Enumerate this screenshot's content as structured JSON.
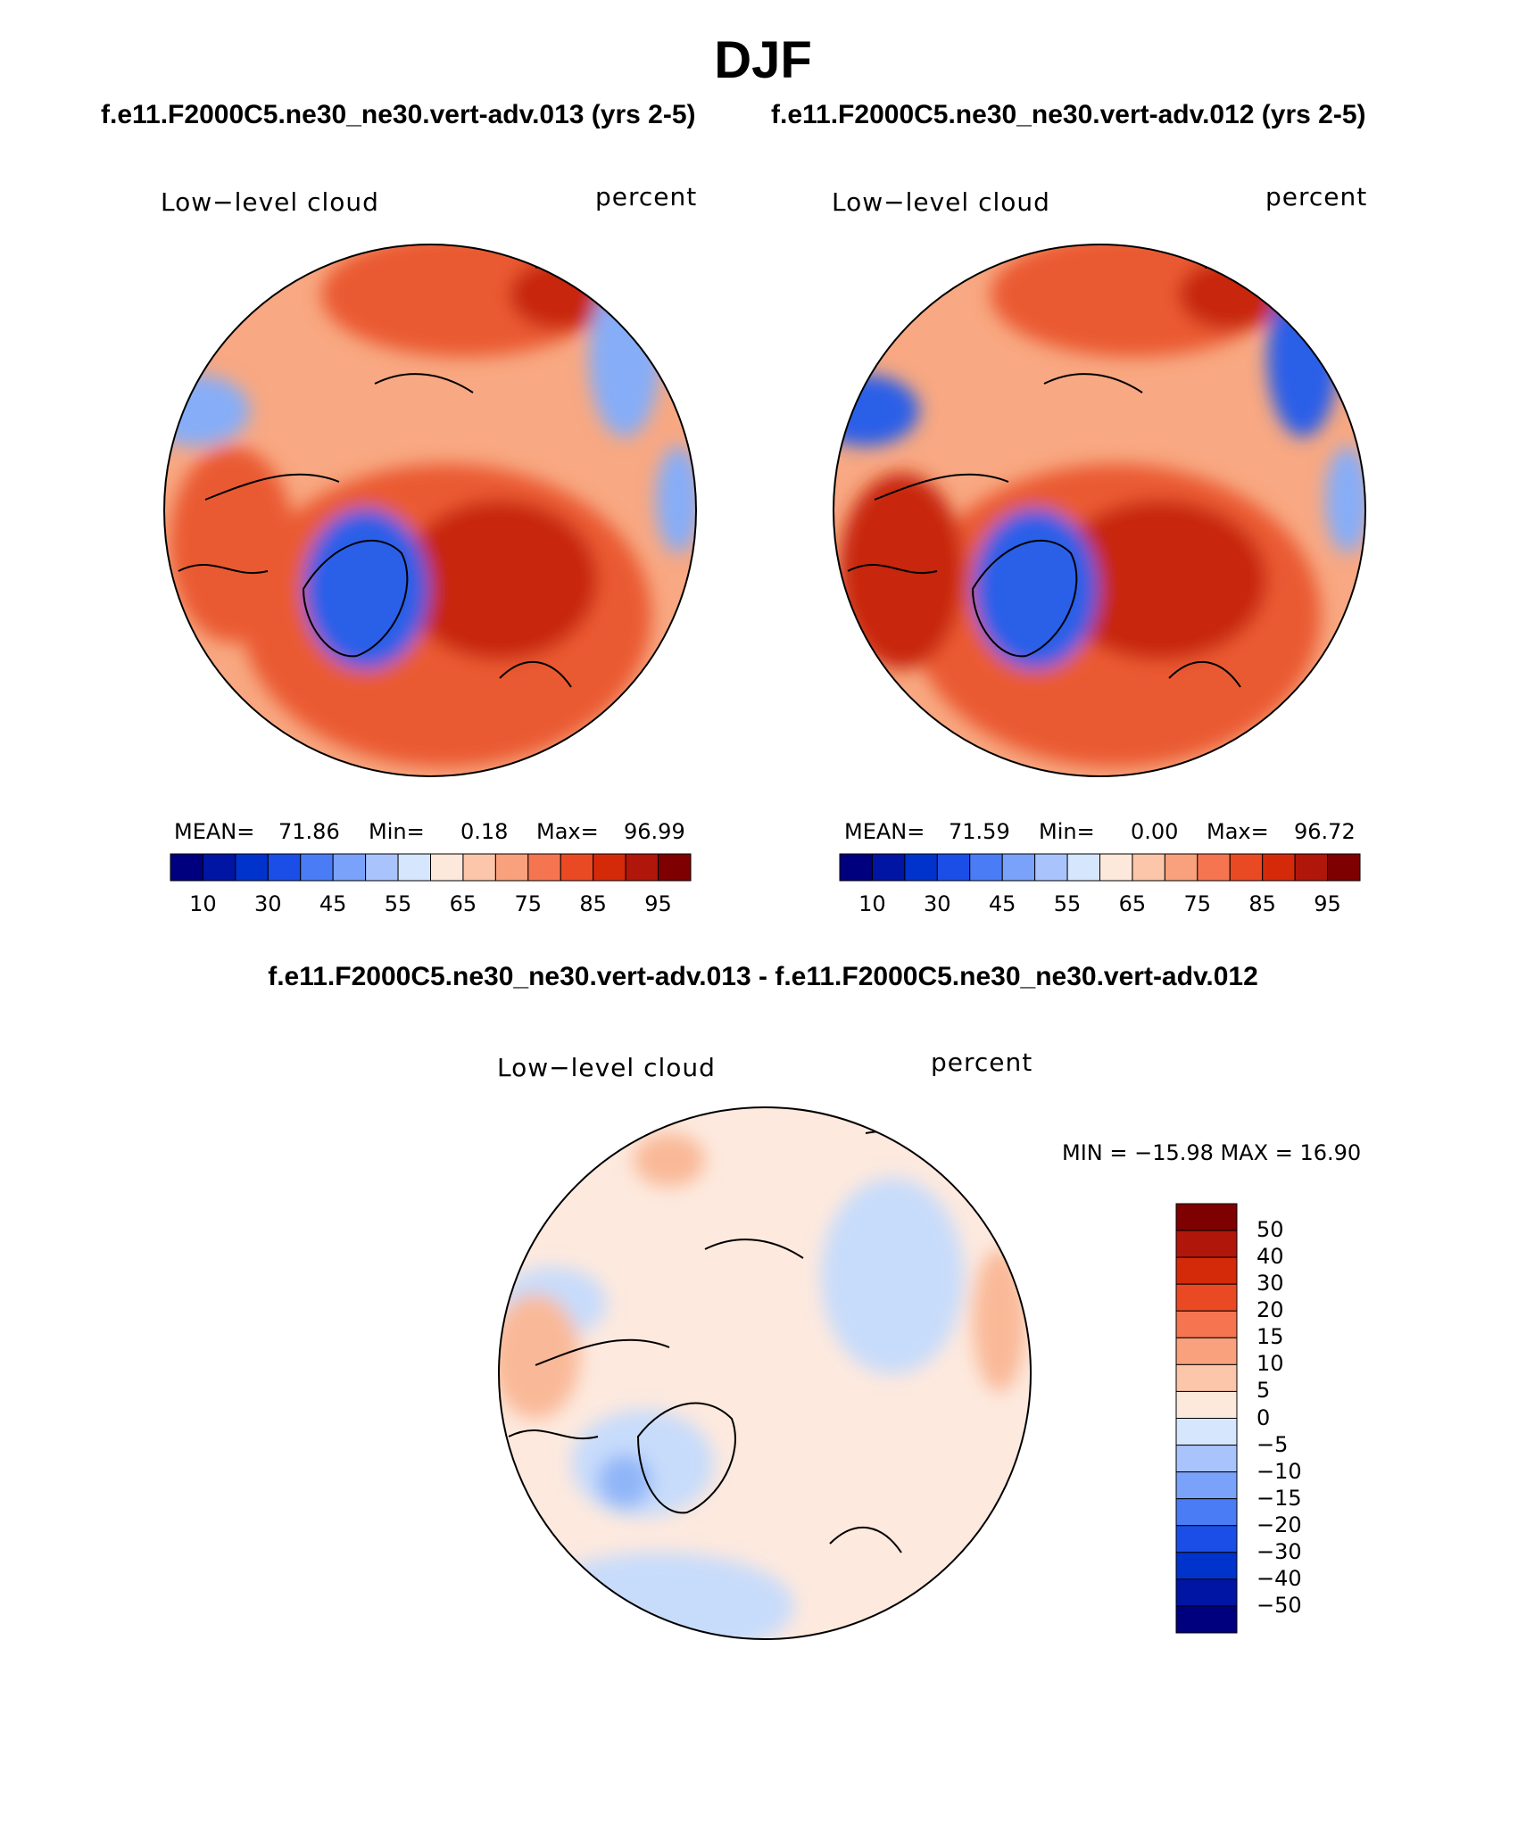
{
  "header": {
    "season": "DJF",
    "case_left": "f.e11.F2000C5.ne30_ne30.vert-adv.013 (yrs 2-5)",
    "case_right": "f.e11.F2000C5.ne30_ne30.vert-adv.012 (yrs 2-5)",
    "diff_title": "f.e11.F2000C5.ne30_ne30.vert-adv.013 - f.e11.F2000C5.ne30_ne30.vert-adv.012"
  },
  "panels": {
    "left": {
      "variable": "Low−level cloud",
      "units": "percent",
      "mean_label": "MEAN=",
      "mean": "71.86",
      "min_label": "Min=",
      "min": "0.18",
      "max_label": "Max=",
      "max": "96.99"
    },
    "right": {
      "variable": "Low−level cloud",
      "units": "percent",
      "mean_label": "MEAN=",
      "mean": "71.59",
      "min_label": "Min=",
      "min": "0.00",
      "max_label": "Max=",
      "max": "96.72"
    },
    "diff": {
      "variable": "Low−level cloud",
      "units": "percent",
      "minmax": "MIN = −15.98  MAX =   16.90"
    }
  },
  "colorbars": {
    "abs_colors": [
      "#00007f",
      "#0015a3",
      "#0033cc",
      "#1a4ee6",
      "#4a7cf5",
      "#7aa2fa",
      "#a9c4fc",
      "#d6e6fd",
      "#fde8dc",
      "#fcc6aa",
      "#f9a07c",
      "#f47550",
      "#ea4a23",
      "#d42a0a",
      "#b0160a",
      "#7f0000"
    ],
    "abs_tick_labels": [
      "10",
      "30",
      "45",
      "55",
      "65",
      "75",
      "85",
      "95"
    ],
    "diff_colors": [
      "#7f0000",
      "#b0160a",
      "#d42a0a",
      "#ea4a23",
      "#f47550",
      "#f9a07c",
      "#fcc6aa",
      "#fde8dc",
      "#d6e6fd",
      "#a9c4fc",
      "#7aa2fa",
      "#4a7cf5",
      "#1a4ee6",
      "#0033cc",
      "#0015a3",
      "#00007f"
    ],
    "diff_tick_labels": [
      "50",
      "40",
      "30",
      "20",
      "15",
      "10",
      "5",
      "0",
      "−5",
      "−10",
      "−15",
      "−20",
      "−30",
      "−40",
      "−50"
    ]
  },
  "map_colors": {
    "ocean_high": "#ea5a32",
    "ocean_mid": "#f8a882",
    "ocean_dark": "#c8280a",
    "ice_low": "#2a5ee8",
    "ice_lighter": "#86adf8",
    "diff_base": "#fde9de",
    "diff_neg": "#c7dcfb",
    "diff_neg2": "#90b5f8",
    "diff_pos": "#f9b998"
  }
}
